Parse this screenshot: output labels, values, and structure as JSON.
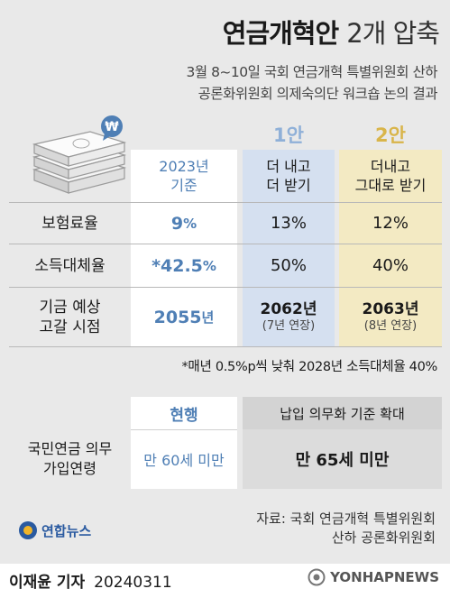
{
  "title": {
    "bold": "연금개혁안",
    "light": "2개 압축"
  },
  "subtitle": [
    "3월 8~10일 국회 연금개혁 특별위원회 산하",
    "공론화위원회 의제숙의단 워크숍 논의 결과"
  ],
  "columns": {
    "plan1_label": "1안",
    "plan2_label": "2안",
    "base_header": [
      "2023년",
      "기준"
    ],
    "plan1_header": [
      "더 내고",
      "더 받기"
    ],
    "plan2_header": [
      "더내고",
      "그대로 받기"
    ]
  },
  "rows": [
    {
      "label": [
        "보험료율"
      ],
      "base": "9",
      "base_unit": "%",
      "plan1": "13%",
      "plan2": "12%"
    },
    {
      "label": [
        "소득대체율"
      ],
      "base": "*42.5",
      "base_unit": "%",
      "plan1": "50%",
      "plan2": "40%"
    },
    {
      "label": [
        "기금 예상",
        "고갈 시점"
      ],
      "base": "2055",
      "base_unit": "년",
      "plan1": "2062년",
      "plan1_sub": "(7년 연장)",
      "plan2": "2063년",
      "plan2_sub": "(8년 연장)"
    }
  ],
  "footnote": "*매년 0.5%p씩 낮춰 2028년 소득대체율 40%",
  "section2": {
    "current_label": "현행",
    "proposal_label": "납입 의무화 기준 확대",
    "row_label": [
      "국민연금 의무",
      "가입연령"
    ],
    "current_value": "만 60세 미만",
    "proposal_value": "만 65세 미만"
  },
  "source": [
    "자료: 국회 연금개혁 특별위원회",
    "산하 공론화위원회"
  ],
  "logo_text": "연합뉴스",
  "reporter": "이재윤 기자",
  "date": "20240311",
  "watermark": "YONHAPNEWS",
  "colors": {
    "blue": "#4f7fb5",
    "gold": "#d9b54a",
    "plan1_bg": "#d5e0f0",
    "plan2_bg": "#f3eac3",
    "panel_bg": "#e9e9e9"
  }
}
